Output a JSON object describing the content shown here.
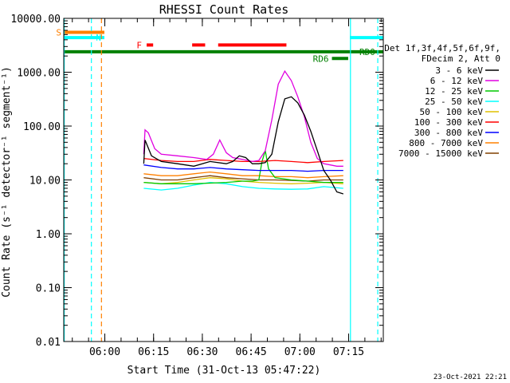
{
  "chart_data": {
    "type": "line",
    "title": "RHESSI Count Rates",
    "xlabel": "Start Time (31-Oct-13 05:47:22)",
    "ylabel": "Count Rate (s⁻¹ detector⁻¹ segment⁻¹)",
    "yscale": "log",
    "ylim": [
      0.01,
      10000
    ],
    "xlim": [
      "05:47:22",
      "07:25:40"
    ],
    "x_ticks": [
      "06:00",
      "06:15",
      "06:30",
      "06:45",
      "07:00",
      "07:15"
    ],
    "y_ticks": [
      "0.01",
      "0.10",
      "1.00",
      "10.00",
      "100.00",
      "1000.00",
      "10000.00"
    ],
    "grid": false,
    "legend_position": "right",
    "legend_header": [
      "Det 1f,3f,4f,5f,6f,9f,",
      "FDecim 2, Att 0"
    ],
    "x_unit": "minutes after 05:47:22",
    "series": [
      {
        "name": "3 - 6 keV",
        "color": "#000000",
        "x": [
          24.6,
          25,
          27,
          30,
          35,
          40,
          45,
          50,
          52,
          54,
          56,
          58,
          60,
          62,
          64,
          66,
          68,
          70,
          72,
          74,
          76,
          78,
          80,
          82,
          84,
          86
        ],
        "y": [
          20,
          55,
          28,
          22,
          20,
          18,
          22,
          20,
          22,
          28,
          26,
          20,
          20,
          21,
          30,
          120,
          320,
          350,
          270,
          160,
          80,
          35,
          15,
          10,
          6,
          5.5
        ]
      },
      {
        "name": "6 - 12 keV",
        "color": "#e000e0",
        "x": [
          24.6,
          25,
          26,
          28,
          30,
          35,
          40,
          44,
          46,
          48,
          50,
          52,
          55,
          58,
          60,
          62,
          64,
          66,
          68,
          70,
          72,
          74,
          76,
          78,
          80,
          82,
          84,
          86
        ],
        "y": [
          30,
          85,
          75,
          38,
          30,
          28,
          26,
          24,
          30,
          55,
          32,
          26,
          24,
          22,
          23,
          35,
          130,
          600,
          1050,
          700,
          350,
          150,
          50,
          25,
          20,
          19,
          18,
          18
        ]
      },
      {
        "name": "12 - 25 keV",
        "color": "#00c800",
        "x": [
          24.6,
          30,
          40,
          50,
          55,
          58,
          60,
          61,
          62,
          63,
          65,
          70,
          75,
          80,
          86
        ],
        "y": [
          9,
          8.5,
          8.5,
          9,
          9.5,
          9.5,
          10,
          22,
          35,
          16,
          11,
          10,
          9.5,
          9,
          9
        ]
      },
      {
        "name": "25 - 50 keV",
        "color": "#00ffff",
        "x": [
          24.6,
          30,
          35,
          40,
          45,
          50,
          55,
          60,
          65,
          70,
          75,
          80,
          86
        ],
        "y": [
          7,
          6.5,
          7,
          8,
          9,
          8.5,
          7.5,
          7,
          6.8,
          6.7,
          6.8,
          7.5,
          7
        ]
      },
      {
        "name": "50 - 100 keV",
        "color": "#e0c000",
        "x": [
          24.6,
          30,
          35,
          40,
          45,
          50,
          55,
          60,
          65,
          70,
          75,
          80,
          86
        ],
        "y": [
          9,
          8.5,
          9,
          10,
          11,
          10.5,
          9.5,
          9,
          8.7,
          8.5,
          8.7,
          9,
          8.5
        ]
      },
      {
        "name": "100 - 300 keV",
        "color": "#ff0000",
        "x": [
          24.6,
          30,
          35,
          40,
          45,
          50,
          55,
          60,
          65,
          70,
          75,
          80,
          86
        ],
        "y": [
          25,
          23,
          22,
          22,
          24,
          23,
          22,
          22,
          23,
          22,
          21,
          22,
          23
        ]
      },
      {
        "name": "300 - 800 keV",
        "color": "#0000ff",
        "x": [
          24.6,
          30,
          35,
          40,
          45,
          50,
          55,
          60,
          65,
          70,
          75,
          80,
          86
        ],
        "y": [
          19,
          17,
          16,
          16,
          17,
          16,
          15.5,
          15,
          15,
          15,
          14.5,
          15,
          15
        ]
      },
      {
        "name": "800 - 7000 keV",
        "color": "#ff8000",
        "x": [
          24.6,
          30,
          35,
          40,
          45,
          50,
          55,
          60,
          65,
          70,
          75,
          80,
          86
        ],
        "y": [
          13,
          12,
          12,
          13,
          14,
          13,
          12,
          12,
          11.5,
          11.5,
          11,
          11.5,
          12
        ]
      },
      {
        "name": "7000 - 15000 keV",
        "color": "#804000",
        "x": [
          24.6,
          30,
          35,
          40,
          45,
          50,
          55,
          60,
          65,
          70,
          75,
          80,
          86
        ],
        "y": [
          11,
          10,
          10,
          11,
          12,
          11,
          10.5,
          10,
          10,
          9.8,
          9.5,
          10,
          10
        ]
      }
    ],
    "annotations": [
      {
        "label": "S",
        "color": "#ff8000",
        "level": 5500,
        "x_start": 0,
        "x_end": 12.5
      },
      {
        "label": "N",
        "color": "#00ffff",
        "level": 4400,
        "x_start": 0,
        "x_end": 12.5
      },
      {
        "label": "N",
        "color": "#00ffff",
        "level": 4400,
        "x_start": 88,
        "x_end": 98.3
      },
      {
        "label": "F",
        "color": "#ff0000",
        "level": 3200,
        "segments": [
          [
            25.5,
            27.5
          ],
          [
            39.5,
            43.5
          ],
          [
            47.5,
            68.5
          ]
        ]
      },
      {
        "label": "RD0",
        "color": "#008000",
        "level": 2400,
        "x_start": 0,
        "x_end": 98.3
      },
      {
        "label": "RD6",
        "color": "#008000",
        "level": 1800,
        "x_start": 82.5,
        "x_end": 87.5
      }
    ],
    "vertical_lines": [
      {
        "x": 0.15,
        "color": "#00ffff",
        "style": "solid"
      },
      {
        "x": 8.5,
        "color": "#00ffff",
        "style": "dashed"
      },
      {
        "x": 11.6,
        "color": "#ff8000",
        "style": "dashed"
      },
      {
        "x": 88.2,
        "color": "#00ffff",
        "style": "solid"
      },
      {
        "x": 96.6,
        "color": "#00ffff",
        "style": "dashed"
      }
    ],
    "footer": "23-Oct-2021 22:21"
  }
}
